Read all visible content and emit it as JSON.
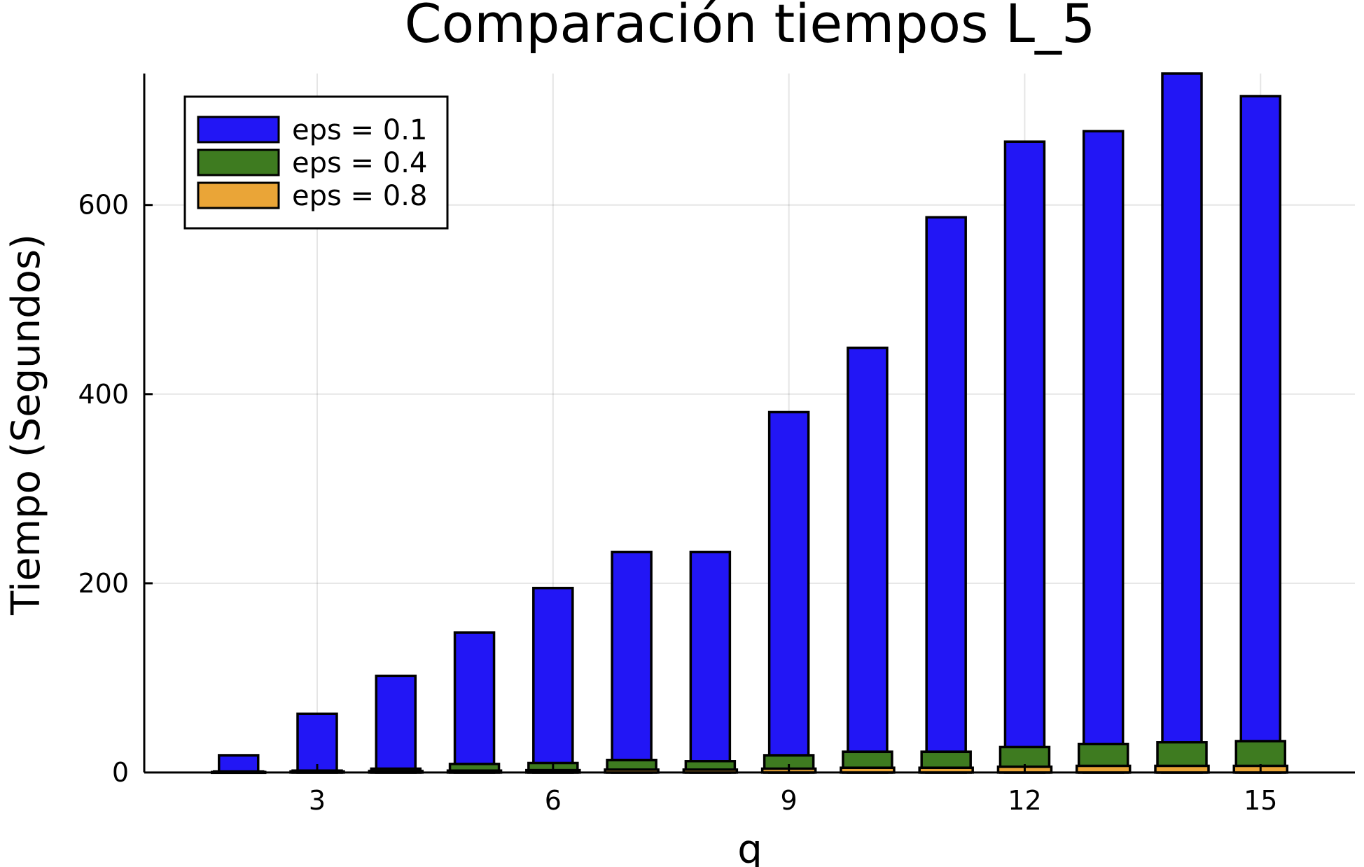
{
  "chart_data": {
    "type": "bar",
    "title": "Comparación tiempos L_5",
    "xlabel": "q",
    "ylabel": "Tiempo (Segundos)",
    "x": [
      2,
      3,
      4,
      5,
      6,
      7,
      8,
      9,
      10,
      11,
      12,
      13,
      14,
      15
    ],
    "xlim": [
      0.8,
      16.2
    ],
    "ylim": [
      0,
      739
    ],
    "xticks": [
      3,
      6,
      9,
      12,
      15
    ],
    "yticks": [
      0,
      200,
      400,
      600
    ],
    "grid": true,
    "legend_position": "top-left",
    "series": [
      {
        "name": "eps = 0.1",
        "color": "#2216f5",
        "values": [
          18,
          62,
          102,
          148,
          195,
          233,
          233,
          381,
          449,
          587,
          667,
          678,
          739,
          715
        ]
      },
      {
        "name": "eps = 0.4",
        "color": "#3e7b20",
        "values": [
          1,
          2,
          4,
          9,
          10,
          13,
          12,
          18,
          22,
          22,
          27,
          30,
          32,
          33
        ]
      },
      {
        "name": "eps = 0.8",
        "color": "#eaa537",
        "values": [
          0.5,
          1,
          1.5,
          2,
          2.5,
          3,
          3,
          4,
          5,
          5,
          6,
          7,
          7,
          7
        ]
      }
    ]
  }
}
